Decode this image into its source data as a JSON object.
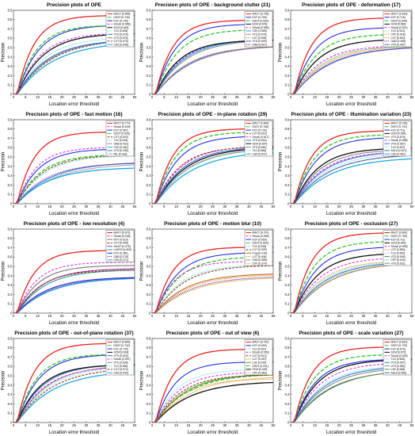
{
  "figure": {
    "xlabel": "Location error threshold",
    "ylabel": "Precision",
    "x_ticks": [
      "0",
      "5",
      "10",
      "15",
      "20",
      "25",
      "30",
      "35",
      "40",
      "45",
      "50"
    ],
    "y_ticks": [
      "0",
      "0.1",
      "0.2",
      "0.3",
      "0.4",
      "0.5",
      "0.6",
      "0.7",
      "0.8",
      "0.9"
    ]
  },
  "trackers": {
    "MACT": {
      "color": "#e8231f",
      "dash": "",
      "width": 1.3
    },
    "DSST": {
      "color": "#2fc52a",
      "dash": "5,2",
      "width": 1.3
    },
    "KCF": {
      "color": "#222ce0",
      "dash": "",
      "width": 1.1
    },
    "SCM": {
      "color": "#111111",
      "dash": "",
      "width": 1.3
    },
    "Struck": {
      "color": "#e02ee0",
      "dash": "3,2",
      "width": 1.1
    },
    "TLD": {
      "color": "#3adcdc",
      "dash": "1,1.4",
      "width": 1.1
    },
    "VTD": {
      "color": "#3a73d8",
      "dash": "",
      "width": 1.1
    },
    "VTS": {
      "color": "#8a8a8a",
      "dash": "",
      "width": 1.1
    },
    "CXT": {
      "color": "#8b3a1f",
      "dash": "3,1.5",
      "width": 1.1
    },
    "CSK": {
      "color": "#1fa8e0",
      "dash": "",
      "width": 1.3
    },
    "LOT": {
      "color": "#e08a1f",
      "dash": "1.2,1",
      "width": 1.1
    },
    "OAB": {
      "color": "#6a1f8a",
      "dash": "1.2,1",
      "width": 1.1
    },
    "MIL": {
      "color": "#aaaaaa",
      "dash": "",
      "width": 1.1
    },
    "LSK": {
      "color": "#5a9a3a",
      "dash": "",
      "width": 1.1
    },
    "Frag": {
      "color": "#c06a20",
      "dash": "",
      "width": 1.1
    },
    "SemiT": {
      "color": "#9a2a9a",
      "dash": "",
      "width": 1.1
    },
    "L1APG": {
      "color": "#2a9a9a",
      "dash": "",
      "width": 1.1
    },
    "ASLA": {
      "color": "#5a5a9a",
      "dash": "",
      "width": 1.1
    },
    "CPF": {
      "color": "#d0a020",
      "dash": "1.2,1",
      "width": 1.1
    }
  },
  "chart_data": [
    {
      "type": "line",
      "title": "Precision plots of OPE",
      "xlim": [
        0,
        50
      ],
      "ylim": [
        0,
        0.9
      ],
      "series": [
        {
          "name": "MACT",
          "final": 0.845,
          "label": "MACT [0.845]"
        },
        {
          "name": "DSST",
          "final": 0.74,
          "label": "DSST [0.740]"
        },
        {
          "name": "KCF",
          "final": 0.74,
          "label": "KCF [0.740]"
        },
        {
          "name": "Struck",
          "final": 0.656,
          "label": "Struck [0.656]"
        },
        {
          "name": "SCM",
          "final": 0.649,
          "label": "SCM [0.649]"
        },
        {
          "name": "TLD",
          "final": 0.608,
          "label": "TLD [0.608]"
        },
        {
          "name": "VTD",
          "final": 0.576,
          "label": "VTD [0.576]"
        },
        {
          "name": "VTS",
          "final": 0.575,
          "label": "VTS [0.575]"
        },
        {
          "name": "CXT",
          "final": 0.575,
          "label": "CXT [0.575]"
        },
        {
          "name": "CSK",
          "final": 0.545,
          "label": "CSK [0.545]"
        }
      ]
    },
    {
      "type": "line",
      "title": "Precision plots of OPE - background clutter (21)",
      "xlim": [
        0,
        50
      ],
      "ylim": [
        0,
        0.9
      ],
      "series": [
        {
          "name": "MACT",
          "final": 0.795,
          "label": "MACT [0.795]"
        },
        {
          "name": "KCF",
          "final": 0.753,
          "label": "KCF [0.753]"
        },
        {
          "name": "DSST",
          "final": 0.694,
          "label": "DSST [0.694]"
        },
        {
          "name": "SCM",
          "final": 0.578,
          "label": "SCM [0.578]"
        },
        {
          "name": "Struck",
          "final": 0.585,
          "label": "Struck [0.585]"
        },
        {
          "name": "CSK",
          "final": 0.585,
          "label": "CSK [0.585]"
        },
        {
          "name": "VTS",
          "final": 0.578,
          "label": "VTS [0.578]"
        },
        {
          "name": "LOT",
          "final": 0.509,
          "label": "LOT [0.509]"
        },
        {
          "name": "VTD",
          "final": 0.509,
          "label": "VTD [0.509]"
        },
        {
          "name": "OAB",
          "final": 0.507,
          "label": "OAB [0.507]"
        }
      ]
    },
    {
      "type": "line",
      "title": "Precision plots of OPE - deformation (17)",
      "xlim": [
        0,
        50
      ],
      "ylim": [
        0,
        0.9
      ],
      "series": [
        {
          "name": "MACT",
          "final": 0.819,
          "label": "MACT [0.819]"
        },
        {
          "name": "KCF",
          "final": 0.716,
          "label": "KCF [0.716]"
        },
        {
          "name": "DSST",
          "final": 0.644,
          "label": "DSST [0.644]"
        },
        {
          "name": "SCM",
          "final": 0.589,
          "label": "SCM [0.589]"
        },
        {
          "name": "Struck",
          "final": 0.521,
          "label": "Struck [0.521]"
        },
        {
          "name": "TLD",
          "final": 0.512,
          "label": "TLD [0.512]"
        },
        {
          "name": "CPF",
          "final": 0.518,
          "label": "CPF [0.518]"
        },
        {
          "name": "LOT",
          "final": 0.51,
          "label": "LOT [0.510]"
        },
        {
          "name": "OAB",
          "final": 0.498,
          "label": "OAB [0.498]"
        },
        {
          "name": "VTD",
          "final": 0.497,
          "label": "VTD [0.497]"
        }
      ]
    },
    {
      "type": "line",
      "title": "Precision plots of OPE - fast motion (16)",
      "xlim": [
        0,
        50
      ],
      "ylim": [
        0,
        0.9
      ],
      "series": [
        {
          "name": "MACT",
          "final": 0.77,
          "label": "MACT [0.770]"
        },
        {
          "name": "Struck",
          "final": 0.604,
          "label": "Struck [0.604]"
        },
        {
          "name": "KCF",
          "final": 0.587,
          "label": "KCF [0.587]"
        },
        {
          "name": "DSST",
          "final": 0.526,
          "label": "DSST [0.526]"
        },
        {
          "name": "CXT",
          "final": 0.52,
          "label": "CXT [0.520]"
        },
        {
          "name": "TLD",
          "final": 0.515,
          "label": "TLD [0.515]"
        },
        {
          "name": "OAB",
          "final": 0.431,
          "label": "OAB [0.431]"
        },
        {
          "name": "CSK",
          "final": 0.381,
          "label": "CSK [0.381]"
        },
        {
          "name": "VTD",
          "final": 0.435,
          "label": "VTD [0.435]"
        },
        {
          "name": "MIL",
          "final": 0.416,
          "label": "MIL [0.416]"
        }
      ]
    },
    {
      "type": "line",
      "title": "Precision plots of OPE - in-plane rotation (29)",
      "xlim": [
        0,
        50
      ],
      "ylim": [
        0,
        0.9
      ],
      "series": [
        {
          "name": "MACT",
          "final": 0.804,
          "label": "MACT [0.804]"
        },
        {
          "name": "DSST",
          "final": 0.768,
          "label": "DSST [0.768]"
        },
        {
          "name": "KCF",
          "final": 0.725,
          "label": "KCF [0.725]"
        },
        {
          "name": "CXT",
          "final": 0.61,
          "label": "CXT [0.610]"
        },
        {
          "name": "Struck",
          "final": 0.617,
          "label": "Struck [0.617]"
        },
        {
          "name": "VTD",
          "final": 0.604,
          "label": "VTD [0.604]"
        },
        {
          "name": "SCM",
          "final": 0.597,
          "label": "SCM [0.597]"
        },
        {
          "name": "VTS",
          "final": 0.581,
          "label": "VTS [0.581]"
        },
        {
          "name": "TLD",
          "final": 0.584,
          "label": "TLD [0.584]"
        },
        {
          "name": "CSK",
          "final": 0.547,
          "label": "CSK [0.547]"
        }
      ]
    },
    {
      "type": "line",
      "title": "Precision plots of OPE - illumination variation (23)",
      "xlim": [
        0,
        50
      ],
      "ylim": [
        0,
        0.9
      ],
      "series": [
        {
          "name": "MACT",
          "final": 0.782,
          "label": "MACT [0.782]"
        },
        {
          "name": "DSST",
          "final": 0.741,
          "label": "DSST [0.741]"
        },
        {
          "name": "KCF",
          "final": 0.711,
          "label": "KCF [0.711]"
        },
        {
          "name": "SCM",
          "final": 0.594,
          "label": "SCM [0.594]"
        },
        {
          "name": "VTS",
          "final": 0.576,
          "label": "VTS [0.576]"
        },
        {
          "name": "Struck",
          "final": 0.558,
          "label": "Struck [0.558]"
        },
        {
          "name": "VTD",
          "final": 0.557,
          "label": "VTD [0.557]"
        },
        {
          "name": "TLD",
          "final": 0.537,
          "label": "TLD [0.537]"
        },
        {
          "name": "ASLA",
          "final": 0.517,
          "label": "ASLA [0.517]"
        },
        {
          "name": "CSK",
          "final": 0.481,
          "label": "CSK [0.481]"
        }
      ]
    },
    {
      "type": "line",
      "title": "Precision plots of OPE - low resolution (4)",
      "xlim": [
        0,
        50
      ],
      "ylim": [
        0,
        0.9
      ],
      "series": [
        {
          "name": "MACT",
          "final": 0.672,
          "label": "MACT [0.672]"
        },
        {
          "name": "Struck",
          "final": 0.545,
          "label": "Struck [0.545]"
        },
        {
          "name": "MTT",
          "final": 0.51,
          "label": "MTT [0.510]"
        },
        {
          "name": "CXT",
          "final": 0.459,
          "label": "CXT [0.459]"
        },
        {
          "name": "SemiT",
          "final": 0.475,
          "label": "SemiT [0.475]"
        },
        {
          "name": "L1APG",
          "final": 0.46,
          "label": "L1APG [0.460]"
        },
        {
          "name": "KCF",
          "final": 0.381,
          "label": "KCF [0.381]"
        },
        {
          "name": "OAB",
          "final": 0.376,
          "label": "OAB [0.376]"
        },
        {
          "name": "CSK",
          "final": 0.371,
          "label": "CSK [0.371]"
        }
      ]
    },
    {
      "type": "line",
      "title": "Precision plots of OPE - motion blur (10)",
      "xlim": [
        0,
        50
      ],
      "ylim": [
        0,
        0.9
      ],
      "series": [
        {
          "name": "MACT",
          "final": 0.707,
          "label": "MACT [0.707]"
        },
        {
          "name": "Struck",
          "final": 0.555,
          "label": "Struck [0.555]"
        },
        {
          "name": "KCF",
          "final": 0.65,
          "label": "KCF [0.650]"
        },
        {
          "name": "DSST",
          "final": 0.603,
          "label": "DSST [0.603]"
        },
        {
          "name": "TLD",
          "final": 0.518,
          "label": "TLD [0.518]"
        },
        {
          "name": "CXT",
          "final": 0.509,
          "label": "CXT [0.509]"
        },
        {
          "name": "Frag",
          "final": 0.418,
          "label": "Frag [0.418]"
        },
        {
          "name": "LOT",
          "final": 0.406,
          "label": "LOT [0.406]"
        },
        {
          "name": "OAB",
          "final": 0.385,
          "label": "OAB [0.385]"
        },
        {
          "name": "CPF",
          "final": 0.374,
          "label": "CPF [0.374]"
        }
      ]
    },
    {
      "type": "line",
      "title": "Precision plots of OPE - occlusion (27)",
      "xlim": [
        0,
        50
      ],
      "ylim": [
        0,
        0.9
      ],
      "series": [
        {
          "name": "MACT",
          "final": 0.861,
          "label": "MACT [0.861]"
        },
        {
          "name": "DSST",
          "final": 0.769,
          "label": "DSST [0.769]"
        },
        {
          "name": "KCF",
          "final": 0.711,
          "label": "KCF [0.711]"
        },
        {
          "name": "SCM",
          "final": 0.64,
          "label": "SCM [0.640]"
        },
        {
          "name": "Struck",
          "final": 0.595,
          "label": "Struck [0.595]"
        },
        {
          "name": "LOT",
          "final": 0.56,
          "label": "LOT [0.560]"
        },
        {
          "name": "TLD",
          "final": 0.552,
          "label": "TLD [0.552]"
        },
        {
          "name": "VTD",
          "final": 0.545,
          "label": "VTD [0.545]"
        },
        {
          "name": "CPF",
          "final": 0.534,
          "label": "CPF [0.534]"
        },
        {
          "name": "VTS",
          "final": 0.531,
          "label": "VTS [0.531]"
        }
      ]
    },
    {
      "type": "line",
      "title": "Precision plots of OPE - out-of-plane rotation (37)",
      "xlim": [
        0,
        50
      ],
      "ylim": [
        0,
        0.9
      ],
      "series": [
        {
          "name": "MACT",
          "final": 0.849,
          "label": "MACT [0.849]"
        },
        {
          "name": "DSST",
          "final": 0.732,
          "label": "DSST [0.732]"
        },
        {
          "name": "KCF",
          "final": 0.729,
          "label": "KCF [0.729]"
        },
        {
          "name": "SCM",
          "final": 0.618,
          "label": "SCM [0.618]"
        },
        {
          "name": "VTD",
          "final": 0.62,
          "label": "VTD [0.620]"
        },
        {
          "name": "Struck",
          "final": 0.597,
          "label": "Struck [0.597]"
        },
        {
          "name": "VTS",
          "final": 0.606,
          "label": "VTS [0.606]"
        },
        {
          "name": "TLD",
          "final": 0.596,
          "label": "TLD [0.596]"
        },
        {
          "name": "CXT",
          "final": 0.574,
          "label": "CXT [0.574]"
        },
        {
          "name": "CSK",
          "final": 0.54,
          "label": "CSK [0.540]"
        }
      ]
    },
    {
      "type": "line",
      "title": "Precision plots of OPE - out of view (6)",
      "xlim": [
        0,
        50
      ],
      "ylim": [
        0,
        0.9
      ],
      "series": [
        {
          "name": "MACT",
          "final": 0.787,
          "label": "MACT [0.787]"
        },
        {
          "name": "KCF",
          "final": 0.65,
          "label": "KCF [0.650]"
        },
        {
          "name": "TLD",
          "final": 0.567,
          "label": "TLD [0.567]"
        },
        {
          "name": "Struck",
          "final": 0.539,
          "label": "Struck [0.539]"
        },
        {
          "name": "CXT",
          "final": 0.51,
          "label": "CXT [0.510]"
        },
        {
          "name": "LOT",
          "final": 0.467,
          "label": "LOT [0.467]"
        },
        {
          "name": "LSK",
          "final": 0.515,
          "label": "LSK [0.515]"
        },
        {
          "name": "DSST",
          "final": 0.511,
          "label": "DSST [0.511]"
        },
        {
          "name": "SCM",
          "final": 0.429,
          "label": "SCM [0.429]"
        },
        {
          "name": "CPF",
          "final": 0.483,
          "label": "CPF [0.483]"
        }
      ]
    },
    {
      "type": "line",
      "title": "Precision plots of OPE - scale variation (27)",
      "xlim": [
        0,
        50
      ],
      "ylim": [
        0,
        0.9
      ],
      "series": [
        {
          "name": "MACT",
          "final": 0.81,
          "label": "MACT [0.810]"
        },
        {
          "name": "DSST",
          "final": 0.729,
          "label": "DSST [0.729]"
        },
        {
          "name": "KCF",
          "final": 0.679,
          "label": "KCF [0.679]"
        },
        {
          "name": "SCM",
          "final": 0.672,
          "label": "SCM [0.672]"
        },
        {
          "name": "Struck",
          "final": 0.639,
          "label": "Struck [0.639]"
        },
        {
          "name": "TLD",
          "final": 0.606,
          "label": "TLD [0.606]"
        },
        {
          "name": "VTD",
          "final": 0.597,
          "label": "VTD [0.597]"
        },
        {
          "name": "VTS",
          "final": 0.582,
          "label": "VTS [0.582]"
        },
        {
          "name": "LSK",
          "final": 0.548,
          "label": "LSK [0.548]"
        },
        {
          "name": "ASLA",
          "final": 0.552,
          "label": "ASLA [0.552]"
        }
      ]
    }
  ]
}
